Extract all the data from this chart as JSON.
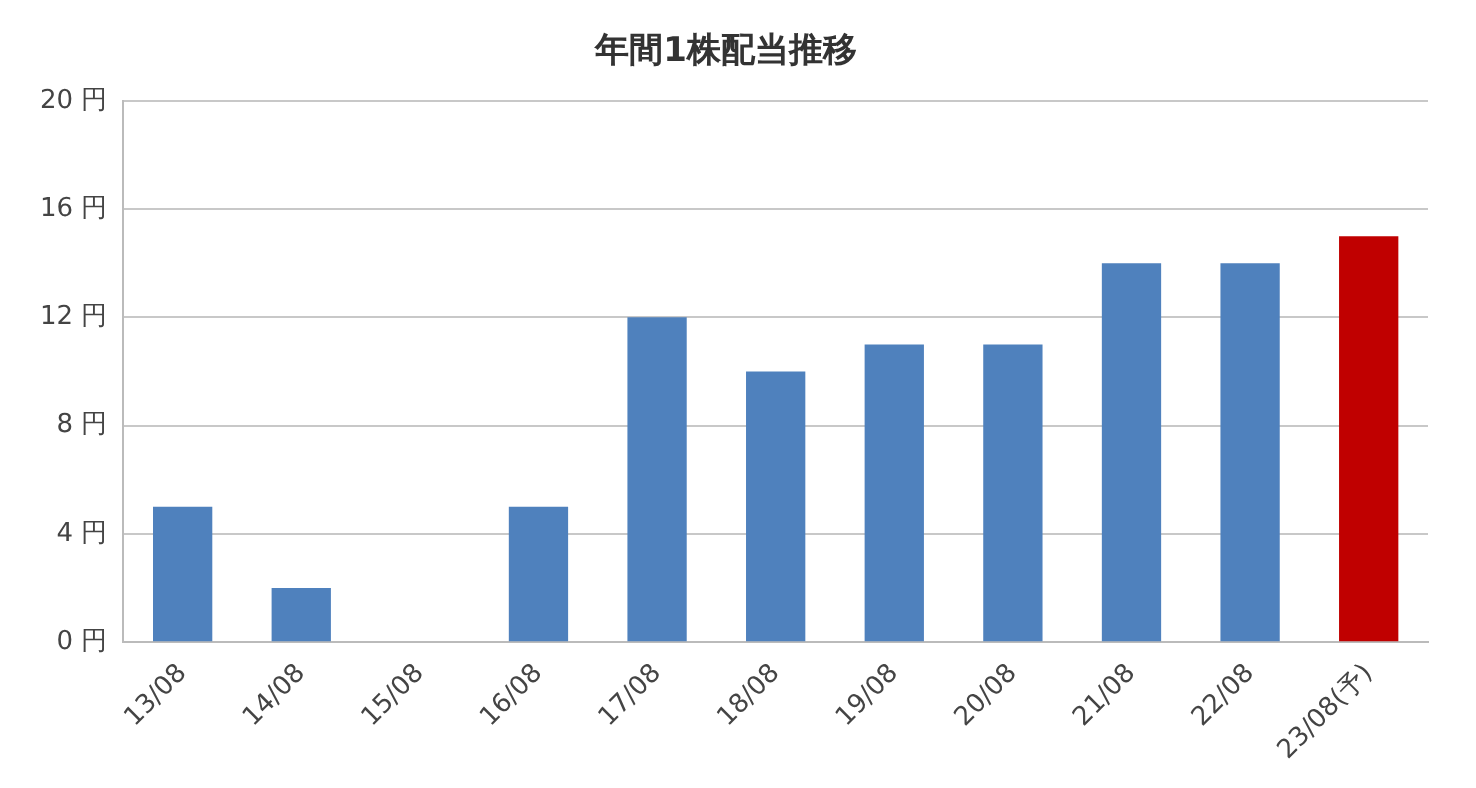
{
  "chart_data": {
    "type": "bar",
    "title": "年間1株配当推移",
    "categories": [
      "13/08",
      "14/08",
      "15/08",
      "16/08",
      "17/08",
      "18/08",
      "19/08",
      "20/08",
      "21/08",
      "22/08",
      "23/08(予)"
    ],
    "values": [
      5,
      2,
      0,
      5,
      12,
      10,
      11,
      11,
      14,
      14,
      15
    ],
    "colors": [
      "#4f81bd",
      "#4f81bd",
      "#4f81bd",
      "#4f81bd",
      "#4f81bd",
      "#4f81bd",
      "#4f81bd",
      "#4f81bd",
      "#4f81bd",
      "#4f81bd",
      "#c00000"
    ],
    "ylim": [
      0,
      20
    ],
    "yticks": [
      {
        "value": 0,
        "label": "0 円"
      },
      {
        "value": 4,
        "label": "4 円"
      },
      {
        "value": 8,
        "label": "8 円"
      },
      {
        "value": 12,
        "label": "12 円"
      },
      {
        "value": 16,
        "label": "16 円"
      },
      {
        "value": 20,
        "label": "20 円"
      }
    ],
    "grid": "y",
    "legend": false
  }
}
